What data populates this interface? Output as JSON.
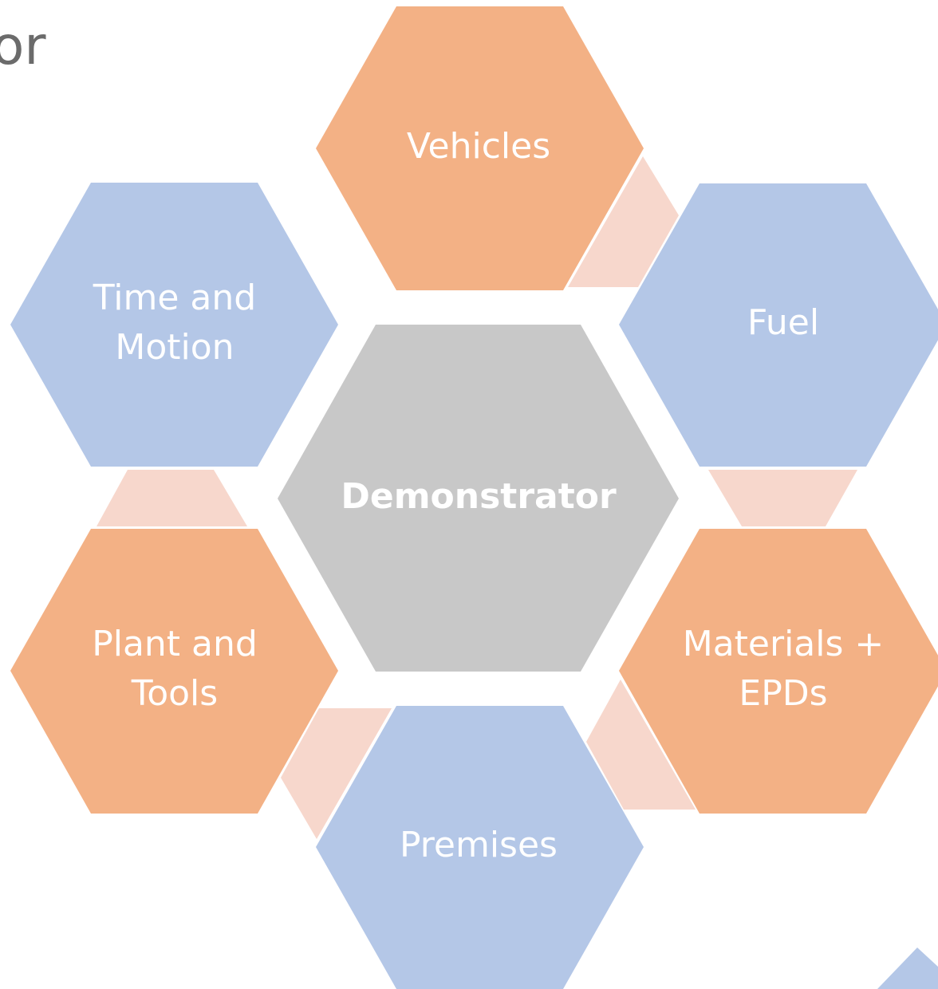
{
  "header": {
    "title": "or"
  },
  "nodes": [
    {
      "lines": [
        "Demonstrator"
      ]
    },
    {
      "lines": [
        "Vehicles"
      ]
    },
    {
      "lines": [
        "Fuel"
      ]
    },
    {
      "lines": [
        "Materials +",
        "EPDs"
      ]
    },
    {
      "lines": [
        "Premises"
      ]
    },
    {
      "lines": [
        "Plant and",
        "Tools"
      ]
    },
    {
      "lines": [
        "Time and",
        "Motion"
      ]
    }
  ]
}
